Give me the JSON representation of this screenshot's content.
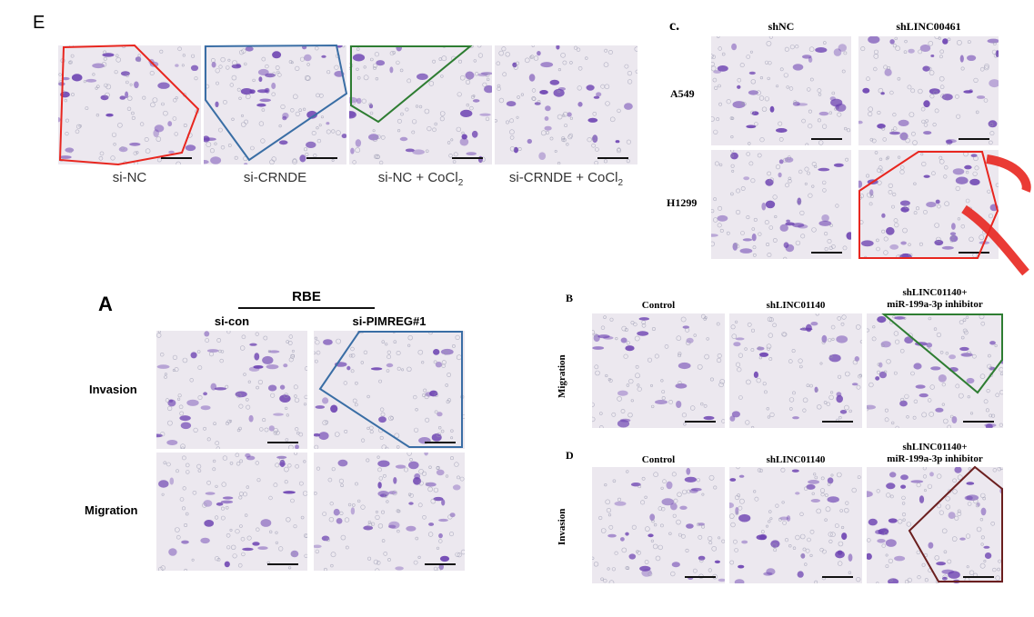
{
  "panel_E": {
    "letter": "E",
    "captions": [
      "si-NC",
      "si-CRNDE",
      "si-NC + CoCl",
      "si-CRNDE + CoCl"
    ],
    "subscript": "2"
  },
  "panel_c": {
    "letter": "c.",
    "columns": [
      "shNC",
      "shLINC00461"
    ],
    "rows": [
      "A549",
      "H1299"
    ]
  },
  "panel_A": {
    "letter": "A",
    "group": "RBE",
    "columns": [
      "si-con",
      "si-PIMREG#1"
    ],
    "rows": [
      "Invasion",
      "Migration"
    ]
  },
  "panel_B": {
    "letter": "B",
    "columns": [
      "Control",
      "shLINC01140",
      "shLINC01140+\nmiR-199a-3p inhibitor"
    ],
    "row": "Migration"
  },
  "panel_D": {
    "letter": "D",
    "columns": [
      "Control",
      "shLINC01140",
      "shLINC01140+\nmiR-199a-3p inhibitor"
    ],
    "row": "Invasion"
  },
  "colors": {
    "outline_red": "#e8261f",
    "outline_blue": "#3a6ea5",
    "outline_green": "#2e7d32",
    "outline_brown": "#6b1f1f",
    "cell_stain": "#6a3fb0"
  }
}
